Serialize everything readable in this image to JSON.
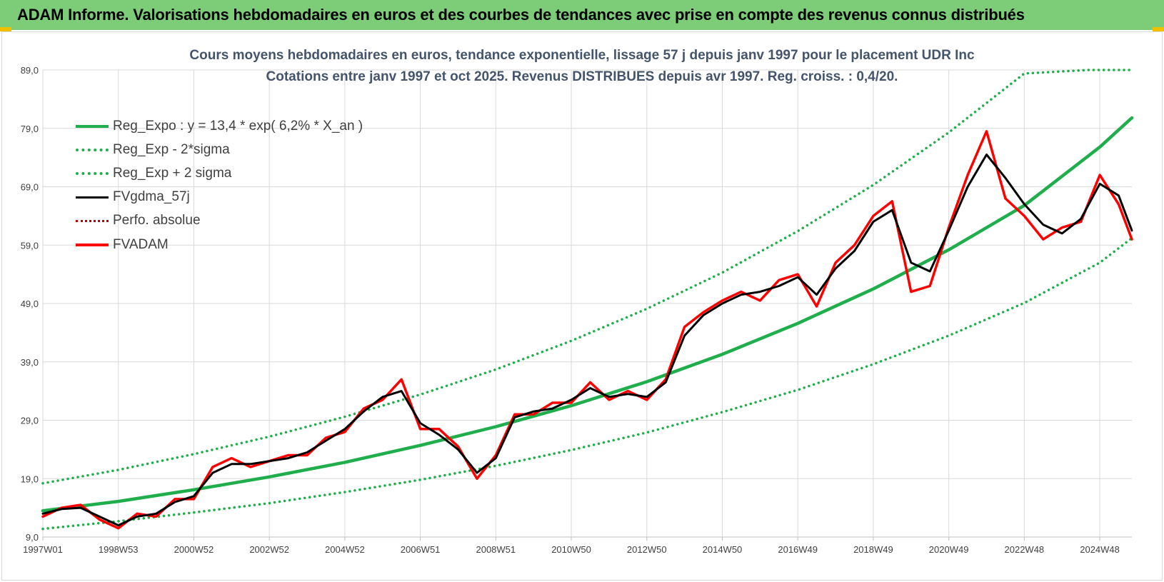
{
  "header": {
    "title": "ADAM Informe. Valorisations hebdomadaires en euros et des courbes de tendances avec prise en compte des revenus connus distribués"
  },
  "colors": {
    "banner": "#7ccc78",
    "green": "#1fae4b",
    "black": "#000000",
    "red": "#ff0000",
    "darkred": "#c00000",
    "grid": "#d9d9d9",
    "title": "#44546a"
  },
  "chart_data": {
    "type": "line",
    "title": "Cours moyens hebdomadaires en euros, tendance exponentielle, lissage 57 j depuis janv 1997 pour le placement UDR Inc",
    "subtitle": "Cotations entre janv 1997 et oct 2025. Revenus DISTRIBUES depuis avr 1997. Reg. croiss. : 0,4/20.",
    "xlabel": "",
    "ylabel": "",
    "ylim": [
      9.0,
      89.0
    ],
    "xlim": [
      1997.0,
      2025.85
    ],
    "yticks": [
      "89,0",
      "79,0",
      "69,0",
      "59,0",
      "49,0",
      "39,0",
      "29,0",
      "19,0",
      "9,0"
    ],
    "yticks_values": [
      89,
      79,
      69,
      59,
      49,
      39,
      29,
      19,
      9
    ],
    "xtick_labels": [
      "1997W01",
      "1998W53",
      "2000W52",
      "2002W52",
      "2004W52",
      "2006W51",
      "2008W51",
      "2010W50",
      "2012W50",
      "2014W50",
      "2016W49",
      "2018W49",
      "2020W49",
      "2022W48",
      "2024W48"
    ],
    "xtick_values": [
      1997.0,
      1999.0,
      2001.0,
      2003.0,
      2005.0,
      2007.0,
      2009.0,
      2011.0,
      2013.0,
      2015.0,
      2017.0,
      2019.0,
      2021.0,
      2023.0,
      2025.0
    ],
    "grid": true,
    "legend_position": "top-left",
    "series": [
      {
        "name": "Reg_Expo : y = 13,4 * exp( 6,2% *  X_an )",
        "style": "solid",
        "color": "#1fae4b",
        "width": 4.5,
        "x": [
          1997.0,
          1999.0,
          2001.0,
          2003.0,
          2005.0,
          2007.0,
          2009.0,
          2011.0,
          2013.0,
          2015.0,
          2017.0,
          2019.0,
          2021.0,
          2023.0,
          2025.0,
          2025.85
        ],
        "values": [
          13.5,
          15.1,
          17.1,
          19.3,
          21.8,
          24.7,
          27.9,
          31.5,
          35.6,
          40.3,
          45.6,
          51.5,
          58.2,
          65.8,
          75.8,
          80.8
        ]
      },
      {
        "name": "Reg_Exp - 2*sigma",
        "style": "dotted",
        "color": "#1fae4b",
        "width": 3.5,
        "x": [
          1997.0,
          1999.0,
          2001.0,
          2003.0,
          2005.0,
          2007.0,
          2009.0,
          2011.0,
          2013.0,
          2015.0,
          2017.0,
          2019.0,
          2021.0,
          2023.0,
          2025.0,
          2025.85
        ],
        "values": [
          10.4,
          11.7,
          13.2,
          14.8,
          16.7,
          18.8,
          21.2,
          23.9,
          26.9,
          30.4,
          34.2,
          38.6,
          43.5,
          49.1,
          56.0,
          60.2
        ]
      },
      {
        "name": "Reg_Exp + 2 sigma",
        "style": "dotted",
        "color": "#1fae4b",
        "width": 3.5,
        "x": [
          1997.0,
          1999.0,
          2001.0,
          2003.0,
          2005.0,
          2007.0,
          2009.0,
          2011.0,
          2013.0,
          2015.0,
          2017.0,
          2019.0,
          2021.0,
          2023.0,
          2024.7,
          2025.85
        ],
        "values": [
          18.2,
          20.5,
          23.2,
          26.2,
          29.6,
          33.4,
          37.7,
          42.6,
          48.1,
          54.3,
          61.4,
          69.3,
          78.3,
          88.4,
          89.0,
          89.0
        ]
      },
      {
        "name": "FVgdma_57j",
        "style": "solid",
        "color": "#000000",
        "width": 3,
        "x": [
          1997.0,
          1997.5,
          1998.0,
          1998.5,
          1999.0,
          1999.5,
          2000.0,
          2000.5,
          2001.0,
          2001.5,
          2002.0,
          2002.5,
          2003.0,
          2003.5,
          2004.0,
          2004.5,
          2005.0,
          2005.5,
          2006.0,
          2006.5,
          2007.0,
          2007.5,
          2008.0,
          2008.5,
          2009.0,
          2009.5,
          2010.0,
          2010.5,
          2011.0,
          2011.5,
          2012.0,
          2012.5,
          2013.0,
          2013.5,
          2014.0,
          2014.5,
          2015.0,
          2015.5,
          2016.0,
          2016.5,
          2017.0,
          2017.5,
          2018.0,
          2018.5,
          2019.0,
          2019.5,
          2020.0,
          2020.5,
          2021.0,
          2021.5,
          2022.0,
          2022.5,
          2023.0,
          2023.5,
          2024.0,
          2024.5,
          2025.0,
          2025.5,
          2025.85
        ],
        "values": [
          13.0,
          13.8,
          14.0,
          12.5,
          11.0,
          12.5,
          13.0,
          15.0,
          16.0,
          20.0,
          21.5,
          21.5,
          22.0,
          22.5,
          23.5,
          25.5,
          27.5,
          30.5,
          33.0,
          34.0,
          28.5,
          26.5,
          24.0,
          20.0,
          22.5,
          29.5,
          30.5,
          31.0,
          32.5,
          34.5,
          33.0,
          33.5,
          33.0,
          35.5,
          43.5,
          47.0,
          49.0,
          50.5,
          51.0,
          52.0,
          53.5,
          50.5,
          55.0,
          58.0,
          63.0,
          65.0,
          56.0,
          54.5,
          61.5,
          69.0,
          74.5,
          70.5,
          66.0,
          62.5,
          61.0,
          63.5,
          69.5,
          67.5,
          61.5
        ]
      },
      {
        "name": "Perfo. absolue",
        "style": "dotted",
        "color": "#c00000",
        "width": 2.5,
        "x": [],
        "values": []
      },
      {
        "name": "FVADAM",
        "style": "solid",
        "color": "#ff0000",
        "width": 3.5,
        "x": [
          1997.0,
          1997.5,
          1998.0,
          1998.5,
          1999.0,
          1999.5,
          2000.0,
          2000.5,
          2001.0,
          2001.5,
          2002.0,
          2002.5,
          2003.0,
          2003.5,
          2004.0,
          2004.5,
          2005.0,
          2005.5,
          2006.0,
          2006.5,
          2007.0,
          2007.5,
          2008.0,
          2008.5,
          2009.0,
          2009.5,
          2010.0,
          2010.5,
          2011.0,
          2011.5,
          2012.0,
          2012.5,
          2013.0,
          2013.5,
          2014.0,
          2014.5,
          2015.0,
          2015.5,
          2016.0,
          2016.5,
          2017.0,
          2017.5,
          2018.0,
          2018.5,
          2019.0,
          2019.5,
          2020.0,
          2020.5,
          2021.0,
          2021.5,
          2022.0,
          2022.5,
          2023.0,
          2023.5,
          2024.0,
          2024.5,
          2025.0,
          2025.5,
          2025.85
        ],
        "values": [
          12.5,
          14.0,
          14.5,
          12.0,
          10.5,
          13.0,
          12.5,
          15.5,
          15.5,
          21.0,
          22.5,
          21.0,
          22.0,
          23.0,
          23.0,
          26.0,
          27.0,
          31.0,
          32.5,
          36.0,
          27.5,
          27.5,
          24.5,
          19.0,
          23.0,
          30.0,
          30.0,
          32.0,
          32.0,
          35.5,
          32.5,
          34.0,
          32.5,
          36.0,
          45.0,
          47.5,
          49.5,
          51.0,
          49.5,
          53.0,
          54.0,
          48.5,
          56.0,
          59.0,
          64.0,
          66.5,
          51.0,
          52.0,
          62.0,
          71.0,
          78.5,
          67.0,
          64.0,
          60.0,
          62.0,
          63.0,
          71.0,
          66.0,
          60.0
        ]
      }
    ]
  }
}
